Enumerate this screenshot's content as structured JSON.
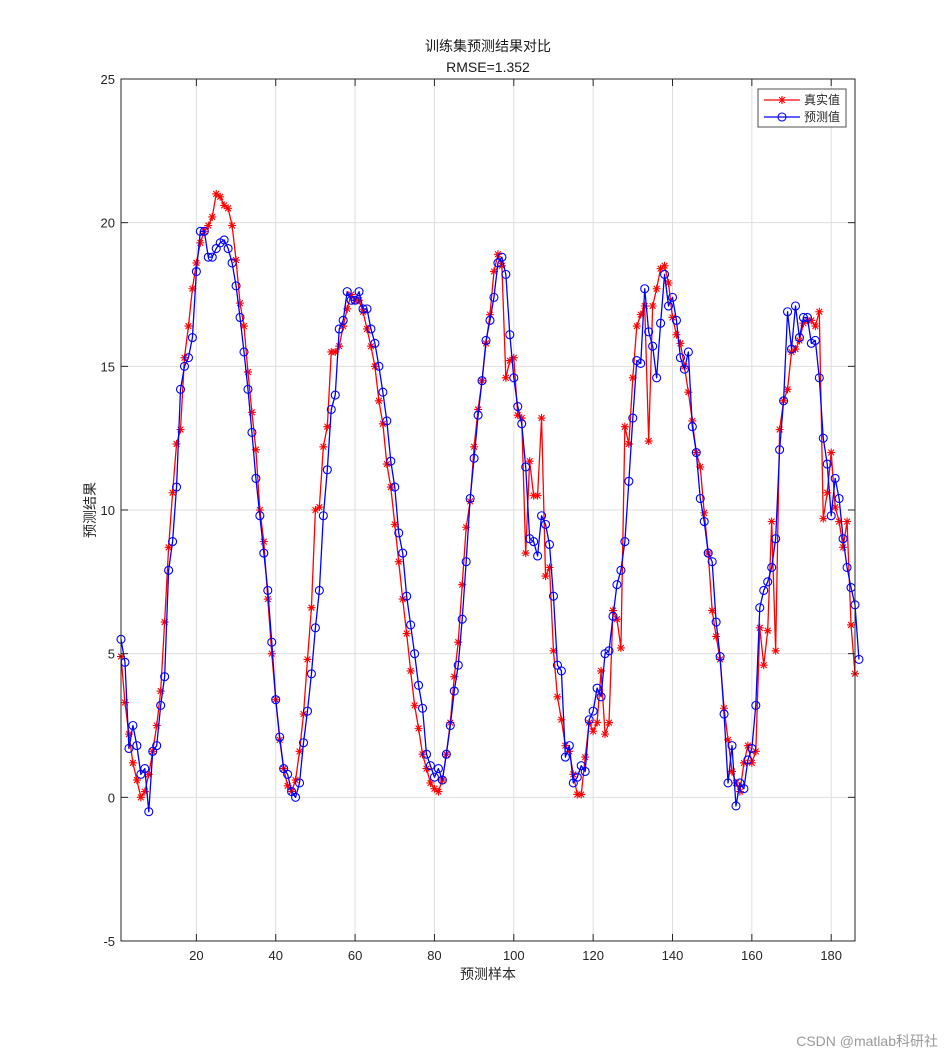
{
  "chart_data": {
    "type": "line",
    "title": "训练集预测结果对比",
    "subtitle": "RMSE=1.352",
    "xlabel": "预测样本",
    "ylabel": "预测结果",
    "xlim": [
      1,
      186
    ],
    "ylim": [
      -5,
      25
    ],
    "xticks": [
      20,
      40,
      60,
      80,
      100,
      120,
      140,
      160,
      180
    ],
    "yticks": [
      -5,
      0,
      5,
      10,
      15,
      20,
      25
    ],
    "grid": true,
    "legend_position": "top-right",
    "series": [
      {
        "name": "真实值",
        "color": "#ff0000",
        "marker": "asterisk",
        "values": [
          4.9,
          3.3,
          2.2,
          1.2,
          0.6,
          0.0,
          0.2,
          0.8,
          1.6,
          2.5,
          3.7,
          6.1,
          8.7,
          10.6,
          12.3,
          12.8,
          15.3,
          16.4,
          17.7,
          18.6,
          19.3,
          19.7,
          19.9,
          20.2,
          21.0,
          20.9,
          20.6,
          20.5,
          19.9,
          18.7,
          17.2,
          16.4,
          14.8,
          13.4,
          12.1,
          10.0,
          8.9,
          6.9,
          5.0,
          3.4,
          2.0,
          1.0,
          0.4,
          0.2,
          0.6,
          1.6,
          2.9,
          4.8,
          6.6,
          10.0,
          10.1,
          12.2,
          12.9,
          15.5,
          15.5,
          15.7,
          16.4,
          17.0,
          17.5,
          17.3,
          17.3,
          16.9,
          16.3,
          15.7,
          15.0,
          13.8,
          13.0,
          11.6,
          10.8,
          9.5,
          8.2,
          6.9,
          5.7,
          4.4,
          3.2,
          2.4,
          1.5,
          1.0,
          0.5,
          0.3,
          0.2,
          0.6,
          1.5,
          2.6,
          4.2,
          5.4,
          7.4,
          9.4,
          10.3,
          12.2,
          13.5,
          14.5,
          15.8,
          16.8,
          18.3,
          18.9,
          18.5,
          14.6,
          15.2,
          15.3,
          13.3,
          13.2,
          8.5,
          11.7,
          10.5,
          10.5,
          13.2,
          7.7,
          8.0,
          5.1,
          3.5,
          2.7,
          1.8,
          1.6,
          0.8,
          0.1,
          0.1,
          1.4,
          2.6,
          2.3,
          2.6,
          4.4,
          2.2,
          2.6,
          6.5,
          6.2,
          5.2,
          12.9,
          12.3,
          14.6,
          16.4,
          16.8,
          17.1,
          12.4,
          17.1,
          17.7,
          18.4,
          18.5,
          17.9,
          16.7,
          16.1,
          15.8,
          15.0,
          14.1,
          13.1,
          12.0,
          11.5,
          9.9,
          8.5,
          6.5,
          5.6,
          4.8,
          3.1,
          2.0,
          0.9,
          0.5,
          0.2,
          1.2,
          1.8,
          1.2,
          1.6,
          5.9,
          4.6,
          5.8,
          9.6,
          5.1,
          12.8,
          13.8,
          14.2,
          15.5,
          15.6,
          15.9,
          16.5,
          16.6,
          16.6,
          16.4,
          16.9,
          9.7,
          10.6,
          12.0,
          10.1,
          9.6,
          8.7,
          9.6,
          6.0,
          4.3
        ]
      },
      {
        "name": "预测值",
        "color": "#0000ff",
        "marker": "circle",
        "values": [
          5.5,
          4.7,
          1.7,
          2.5,
          1.8,
          0.8,
          1.0,
          -0.5,
          1.6,
          1.8,
          3.2,
          4.2,
          7.9,
          8.9,
          10.8,
          14.2,
          15.0,
          15.3,
          16.0,
          18.3,
          19.7,
          19.7,
          18.8,
          18.8,
          19.1,
          19.3,
          19.4,
          19.1,
          18.6,
          17.8,
          16.7,
          15.5,
          14.2,
          12.7,
          11.1,
          9.8,
          8.5,
          7.2,
          5.4,
          3.4,
          2.1,
          1.0,
          0.8,
          0.2,
          0.0,
          0.5,
          1.9,
          3.0,
          4.3,
          5.9,
          7.2,
          9.8,
          11.4,
          13.5,
          14.0,
          16.3,
          16.6,
          17.6,
          17.3,
          17.3,
          17.6,
          17.0,
          17.0,
          16.3,
          15.8,
          15.0,
          14.1,
          13.1,
          11.7,
          10.8,
          9.2,
          8.5,
          7.0,
          6.0,
          5.0,
          3.9,
          3.1,
          1.5,
          1.1,
          0.7,
          1.0,
          0.6,
          1.5,
          2.5,
          3.7,
          4.6,
          6.2,
          8.2,
          10.4,
          11.8,
          13.3,
          14.5,
          15.9,
          16.6,
          17.4,
          18.6,
          18.8,
          18.2,
          16.1,
          14.6,
          13.6,
          13.0,
          11.5,
          9.0,
          8.9,
          8.4,
          9.8,
          9.5,
          8.8,
          7.0,
          4.6,
          4.4,
          1.4,
          1.8,
          0.5,
          0.7,
          1.1,
          0.9,
          2.7,
          3.0,
          3.8,
          3.5,
          5.0,
          5.1,
          6.3,
          7.4,
          7.9,
          8.9,
          11.0,
          13.2,
          15.2,
          15.1,
          17.7,
          16.2,
          15.7,
          14.6,
          16.5,
          18.2,
          17.1,
          17.4,
          16.6,
          15.3,
          14.9,
          15.5,
          12.9,
          12.0,
          10.4,
          9.6,
          8.5,
          8.2,
          6.1,
          4.9,
          2.9,
          0.5,
          1.8,
          -0.3,
          0.5,
          0.3,
          1.3,
          1.7,
          3.2,
          6.6,
          7.2,
          7.5,
          8.0,
          9.0,
          12.1,
          13.8,
          16.9,
          15.6,
          17.1,
          16.0,
          16.7,
          16.7,
          15.8,
          15.9,
          14.6,
          12.5,
          11.6,
          9.8,
          11.1,
          10.4,
          9.0,
          8.0,
          7.3,
          6.7,
          4.8
        ]
      }
    ]
  },
  "watermark": "CSDN @matlab科研社"
}
